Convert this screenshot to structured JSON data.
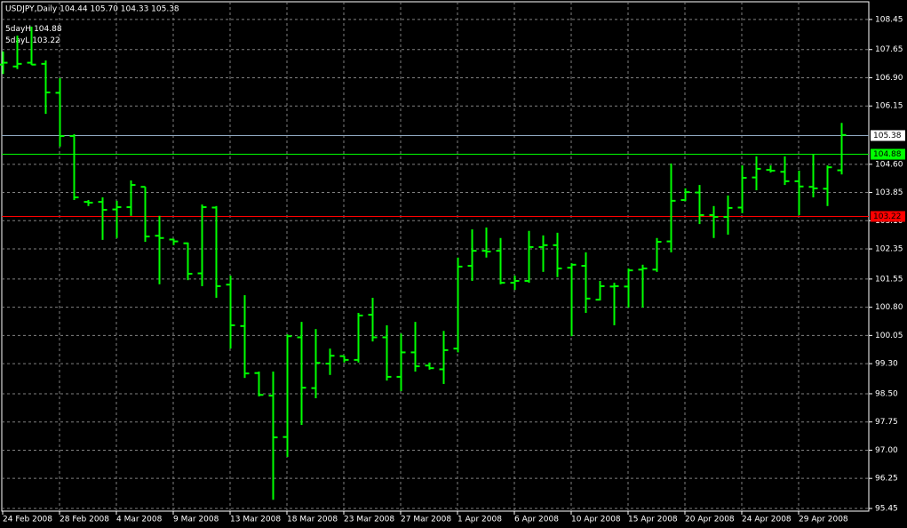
{
  "chart_data": {
    "type": "ohlc",
    "title": "USDJPY,Daily  104.44 105.70 104.33 105.38",
    "categories": [
      "24 Feb 2008",
      null,
      null,
      null,
      "28 Feb 2008",
      null,
      null,
      null,
      "4 Mar 2008",
      null,
      null,
      null,
      "9 Mar 2008",
      null,
      null,
      null,
      "13 Mar 2008",
      null,
      null,
      null,
      "18 Mar 2008",
      null,
      null,
      null,
      "23 Mar 2008",
      null,
      null,
      null,
      "27 Mar 2008",
      null,
      null,
      null,
      "1 Apr 2008",
      null,
      null,
      null,
      "6 Apr 2008",
      null,
      null,
      null,
      "10 Apr 2008",
      null,
      null,
      null,
      "15 Apr 2008",
      null,
      null,
      null,
      "20 Apr 2008",
      null,
      null,
      null,
      "24 Apr 2008",
      null,
      null,
      null,
      "29 Apr 2008",
      null,
      null,
      null
    ],
    "open": [
      107.25,
      107.2,
      107.3,
      107.27,
      106.5,
      105.35,
      103.6,
      103.6,
      103.4,
      103.46,
      104.0,
      102.7,
      102.6,
      102.5,
      101.7,
      103.45,
      101.4,
      100.3,
      99.05,
      98.45,
      97.35,
      100.0,
      98.65,
      99.3,
      99.5,
      99.4,
      100.6,
      100.0,
      98.95,
      99.6,
      99.25,
      99.15,
      99.7,
      101.9,
      102.3,
      102.3,
      101.45,
      101.5,
      102.4,
      102.45,
      101.85,
      101.9,
      101.0,
      101.35,
      101.35,
      101.8,
      101.8,
      102.55,
      103.65,
      103.85,
      103.25,
      103.2,
      103.45,
      104.25,
      104.45,
      104.4,
      104.15,
      104.0,
      103.95,
      104.44
    ],
    "high": [
      107.6,
      108.02,
      108.26,
      107.36,
      106.89,
      105.4,
      103.65,
      103.72,
      103.63,
      104.17,
      104.0,
      103.23,
      102.62,
      102.52,
      103.53,
      103.49,
      101.64,
      101.12,
      99.09,
      99.09,
      100.08,
      100.41,
      100.22,
      99.7,
      99.51,
      100.65,
      101.05,
      100.32,
      100.1,
      100.41,
      99.33,
      100.17,
      102.12,
      102.87,
      102.92,
      102.64,
      101.64,
      102.83,
      102.71,
      102.78,
      101.97,
      102.26,
      101.5,
      101.45,
      101.83,
      101.93,
      102.64,
      104.62,
      103.96,
      104.05,
      103.49,
      103.77,
      104.57,
      104.81,
      104.57,
      104.81,
      104.43,
      104.86,
      104.57,
      105.7
    ],
    "low": [
      107.0,
      107.13,
      107.24,
      105.94,
      105.07,
      103.65,
      103.49,
      102.59,
      102.64,
      103.23,
      102.54,
      101.41,
      102.45,
      101.52,
      101.36,
      101.05,
      99.7,
      98.92,
      98.43,
      95.68,
      96.82,
      97.67,
      98.38,
      99.0,
      99.33,
      99.33,
      99.89,
      98.85,
      98.57,
      99.09,
      99.14,
      98.76,
      99.6,
      101.5,
      102.12,
      101.41,
      101.26,
      101.45,
      101.74,
      101.6,
      100.03,
      100.65,
      100.98,
      100.32,
      100.79,
      100.79,
      101.74,
      102.26,
      103.62,
      103.01,
      102.64,
      102.73,
      103.3,
      103.91,
      104.38,
      104.05,
      103.25,
      103.72,
      103.49,
      104.33
    ],
    "close": [
      107.3,
      107.27,
      107.25,
      106.51,
      105.35,
      103.72,
      103.58,
      103.39,
      103.46,
      104.05,
      102.68,
      102.64,
      102.55,
      101.69,
      103.46,
      101.36,
      100.32,
      99.04,
      98.47,
      97.34,
      100.03,
      98.66,
      99.32,
      99.51,
      99.4,
      100.58,
      100.0,
      98.95,
      99.6,
      99.23,
      99.18,
      99.66,
      101.88,
      102.3,
      102.28,
      101.45,
      101.5,
      102.4,
      102.45,
      101.83,
      101.93,
      101.03,
      101.36,
      101.36,
      101.78,
      101.83,
      102.54,
      103.63,
      103.86,
      103.25,
      103.2,
      103.44,
      104.24,
      104.48,
      104.43,
      104.15,
      104.01,
      103.96,
      104.52,
      105.38
    ],
    "color": "#00ff00",
    "ylim": [
      95.38,
      108.92
    ],
    "yticks": [
      {
        "value": 108.45,
        "label": "108.45"
      },
      {
        "value": 107.65,
        "label": "107.65"
      },
      {
        "value": 106.9,
        "label": "106.90"
      },
      {
        "value": 106.15,
        "label": "106.15"
      },
      {
        "value": 104.6,
        "label": "104.60"
      },
      {
        "value": 103.85,
        "label": "103.85"
      },
      {
        "value": 103.1,
        "label": "103.10"
      },
      {
        "value": 102.35,
        "label": "102.35"
      },
      {
        "value": 101.55,
        "label": "101.55"
      },
      {
        "value": 100.8,
        "label": "100.80"
      },
      {
        "value": 100.05,
        "label": "100.05"
      },
      {
        "value": 99.3,
        "label": "99.30"
      },
      {
        "value": 98.5,
        "label": "98.50"
      },
      {
        "value": 97.75,
        "label": "97.75"
      },
      {
        "value": 97.0,
        "label": "97.00"
      },
      {
        "value": 96.25,
        "label": "96.25"
      },
      {
        "value": 95.45,
        "label": "95.45"
      }
    ],
    "grid": true,
    "levels": [
      {
        "value": 105.38,
        "color": "#8fa8c0"
      },
      {
        "name": "5dayH",
        "value": 104.88,
        "color": "#00ff00"
      },
      {
        "name": "5dayL",
        "value": 103.22,
        "color": "#ff0000"
      }
    ]
  }
}
